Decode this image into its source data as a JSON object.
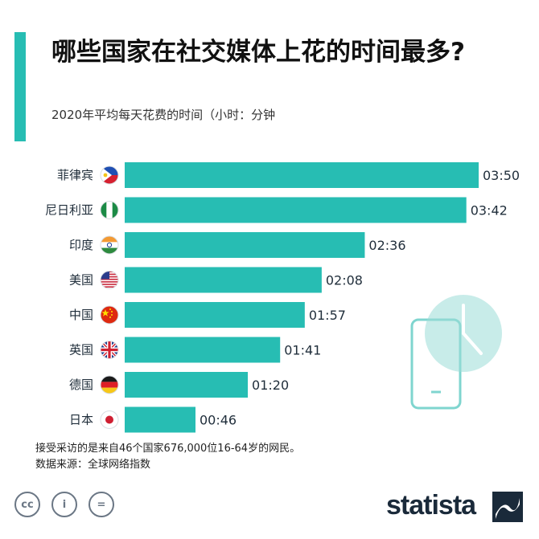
{
  "title": "哪些国家在社交媒体上花的时间最多?",
  "subtitle": "2020年平均每天花费的时间（小时：分钟",
  "colors": {
    "accent": "#27bdb3",
    "bar": "#27bdb3",
    "text": "#1f2d3a",
    "phone": "#7fd5cf"
  },
  "chart_data": {
    "type": "bar",
    "orientation": "horizontal",
    "categories": [
      "菲律宾",
      "尼日利亚",
      "印度",
      "美国",
      "中国",
      "英国",
      "德国",
      "日本"
    ],
    "values": [
      230,
      222,
      156,
      128,
      117,
      101,
      80,
      46
    ],
    "value_labels": [
      "03:50",
      "03:42",
      "02:36",
      "02:08",
      "01:57",
      "01:41",
      "01:20",
      "00:46"
    ],
    "unit": "minutes",
    "flag_icons": [
      "philippines-flag-icon",
      "nigeria-flag-icon",
      "india-flag-icon",
      "usa-flag-icon",
      "china-flag-icon",
      "uk-flag-icon",
      "germany-flag-icon",
      "japan-flag-icon"
    ],
    "xlim": [
      0,
      230
    ],
    "grid": false,
    "legend": "none"
  },
  "footnote": {
    "line1": "接受采访的是来自46个国家676,000位16-64岁的网民。",
    "line2": "数据来源：全球网络指数"
  },
  "license_icons": [
    "cc-icon",
    "attribution-icon",
    "no-derivatives-icon"
  ],
  "license_glyphs": [
    "cc",
    "i",
    "="
  ],
  "brand": "statista"
}
